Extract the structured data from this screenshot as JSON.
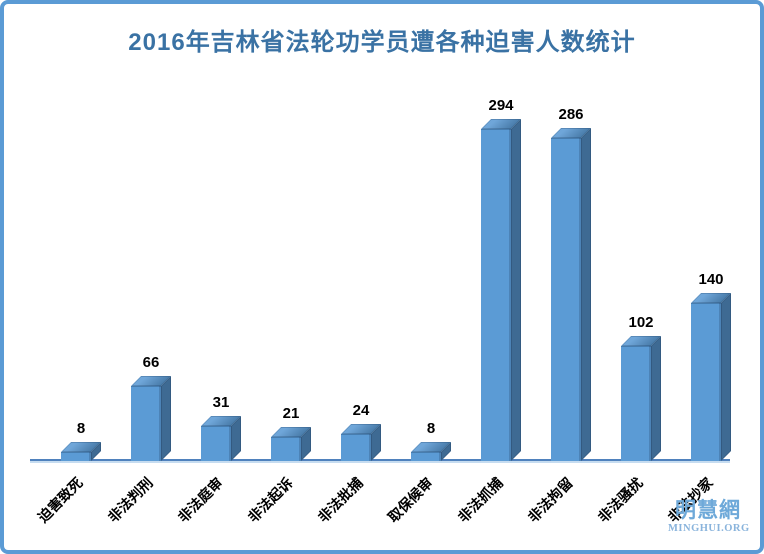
{
  "title": "2016年吉林省法轮功学员遭各种迫害人数统计",
  "watermark": {
    "cn": "明慧網",
    "en": "MINGHUI.ORG"
  },
  "frame": {
    "border_color": "#5b9bd5",
    "background": "#ffffff",
    "title_color": "#3a72a4"
  },
  "chart_data": {
    "type": "bar",
    "title": "2016年吉林省法轮功学员遭各种迫害人数统计",
    "categories": [
      "迫害致死",
      "非法判刑",
      "非法庭审",
      "非法起诉",
      "非法批捕",
      "取保候审",
      "非法抓捕",
      "非法拘留",
      "非法骚扰",
      "非法抄家"
    ],
    "values": [
      8,
      66,
      31,
      21,
      24,
      8,
      294,
      286,
      102,
      140
    ],
    "xlabel": "",
    "ylabel": "",
    "ylim": [
      0,
      300
    ],
    "grid": false,
    "legend": false,
    "bar_style": "3d",
    "value_labels": true,
    "category_label_rotation": 45,
    "colors": {
      "bar_front": "#5b9bd5",
      "bar_side": "#3e6a93",
      "bar_top_light": "#6fa6d9",
      "bar_top_dark": "#4a7dab",
      "axis_line": "#4f81bd",
      "value_label": "#000000",
      "category_label": "#000000"
    }
  }
}
